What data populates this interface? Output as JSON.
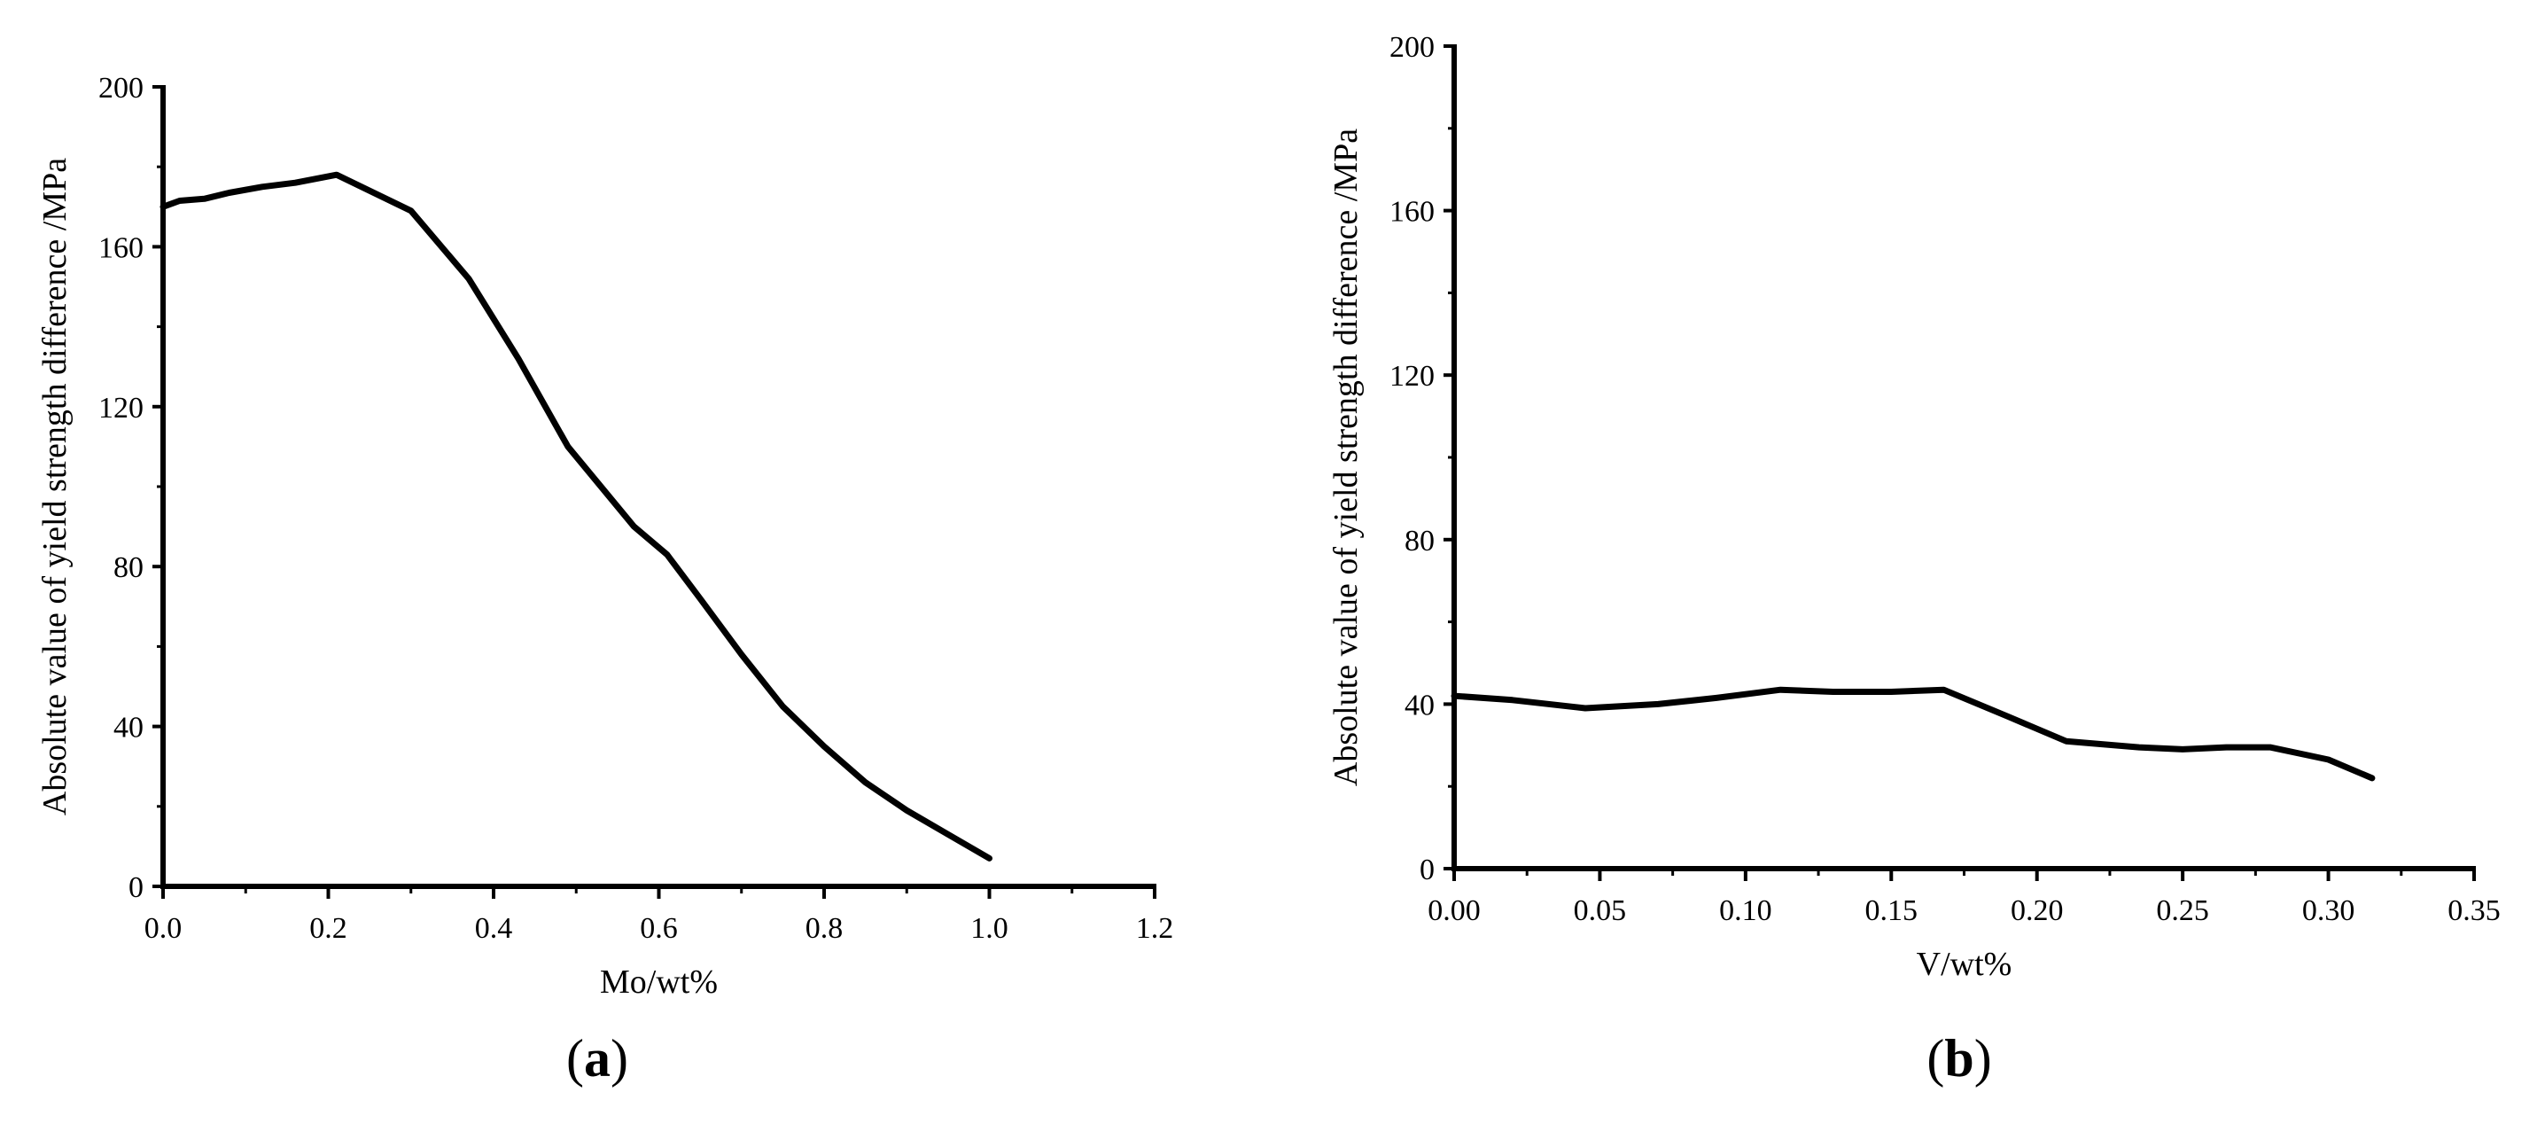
{
  "chart_data": [
    {
      "type": "line",
      "panel_label": "a",
      "xlabel": "Mo/wt%",
      "ylabel": "Absolute value of yield strength difference /MPa",
      "xlim": [
        0,
        1.2
      ],
      "ylim": [
        0,
        200
      ],
      "xticks": [
        "0.0",
        "0.2",
        "0.4",
        "0.6",
        "0.8",
        "1.0",
        "1.2"
      ],
      "yticks": [
        "0",
        "40",
        "80",
        "120",
        "160",
        "200"
      ],
      "x": [
        0,
        0.02,
        0.05,
        0.08,
        0.12,
        0.16,
        0.21,
        0.3,
        0.37,
        0.43,
        0.49,
        0.53,
        0.57,
        0.61,
        0.65,
        0.7,
        0.75,
        0.8,
        0.85,
        0.9,
        0.95,
        1.0
      ],
      "y": [
        170,
        171.5,
        172,
        173.5,
        175,
        176,
        178,
        169,
        152,
        132,
        110,
        100,
        90,
        83,
        72,
        58,
        45,
        35,
        26,
        19,
        13,
        7
      ],
      "grid": false,
      "legend": "none"
    },
    {
      "type": "line",
      "panel_label": "b",
      "xlabel": "V/wt%",
      "ylabel": "Absolute value of yield strength difference /MPa",
      "xlim": [
        0,
        0.35
      ],
      "ylim": [
        0,
        200
      ],
      "xticks": [
        "0.00",
        "0.05",
        "0.10",
        "0.15",
        "0.20",
        "0.25",
        "0.30",
        "0.35"
      ],
      "yticks": [
        "0",
        "40",
        "80",
        "120",
        "160",
        "200"
      ],
      "x": [
        0,
        0.02,
        0.045,
        0.07,
        0.09,
        0.112,
        0.13,
        0.15,
        0.168,
        0.19,
        0.21,
        0.235,
        0.25,
        0.265,
        0.28,
        0.3,
        0.315
      ],
      "y": [
        42,
        41,
        39,
        40,
        41.5,
        43.5,
        43,
        43,
        43.5,
        37,
        31,
        29.5,
        29,
        29.5,
        29.5,
        26.5,
        22
      ],
      "grid": false,
      "legend": "none"
    }
  ],
  "labels": {
    "a": "a",
    "b": "b"
  }
}
